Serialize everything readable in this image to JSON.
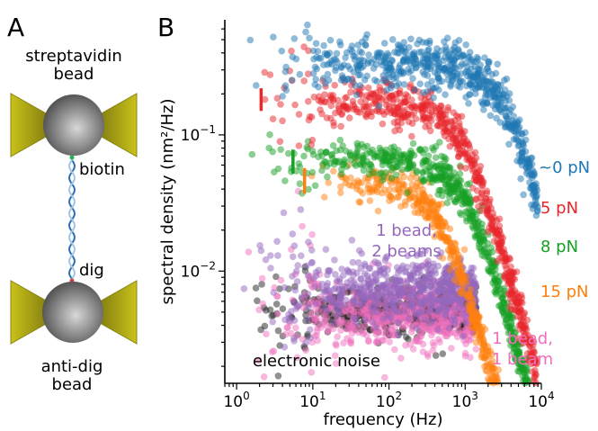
{
  "panel_a": {
    "label": "A",
    "top_bead_label_line1": "streptavidin",
    "top_bead_label_line2": "bead",
    "biotin_label": "biotin",
    "dig_label": "dig",
    "bottom_bead_label_line1": "anti-dig",
    "bottom_bead_label_line2": "bead"
  },
  "panel_b": {
    "label": "B"
  },
  "chart_data": {
    "type": "scatter",
    "xlabel": "frequency (Hz)",
    "ylabel": "spectral density (nm²/Hz)",
    "xscale": "log",
    "yscale": "log",
    "xlim": [
      0.7,
      10000
    ],
    "ylim": [
      0.0015,
      0.7
    ],
    "xticks": [
      {
        "value": 1,
        "label": "10",
        "exp": "0"
      },
      {
        "value": 10,
        "label": "10",
        "exp": "1"
      },
      {
        "value": 100,
        "label": "10",
        "exp": "2"
      },
      {
        "value": 1000,
        "label": "10",
        "exp": "3"
      },
      {
        "value": 10000,
        "label": "10",
        "exp": "4"
      }
    ],
    "yticks": [
      {
        "value": 0.01,
        "label": "10",
        "exp": "−2"
      },
      {
        "value": 0.1,
        "label": "10",
        "exp": "−1"
      }
    ],
    "grid": false,
    "series": [
      {
        "name": "~0 pN",
        "color": "#1f77b4",
        "plateau": 0.33,
        "fc": 3000,
        "fmin": 1,
        "fmax": 9000,
        "scatter": 0.09
      },
      {
        "name": "5 pN",
        "color": "#e8262b",
        "plateau": 0.17,
        "fc": 900,
        "fmin": 1,
        "fmax": 9000,
        "scatter": 0.08
      },
      {
        "name": "8 pN",
        "color": "#16a024",
        "plateau": 0.065,
        "fc": 1000,
        "fmin": 1,
        "fmax": 9000,
        "scatter": 0.07
      },
      {
        "name": "15 pN",
        "color": "#ff7f0e",
        "plateau": 0.045,
        "fc": 450,
        "fmin": 8,
        "fmax": 9000,
        "scatter": 0.07
      },
      {
        "name": "1 bead, 2 beams",
        "color": "#9467bd",
        "plateau": 0.0075,
        "fc": 100000,
        "fmin": 1,
        "fmax": 1400,
        "scatter": 0.11
      },
      {
        "name": "1 bead, 1 beam",
        "color": "#f06fbd",
        "plateau": 0.0048,
        "fc": 100000,
        "fmin": 1,
        "fmax": 1400,
        "scatter": 0.12
      },
      {
        "name": "electronic noise",
        "color": "#222222",
        "plateau": 0.0052,
        "fc": 100000,
        "fmin": 1,
        "fmax": 1400,
        "scatter": 0.08
      }
    ],
    "annotations": [
      {
        "text": "~0 pN",
        "color": "#1f77b4"
      },
      {
        "text": "5 pN",
        "color": "#e8262b"
      },
      {
        "text": "8 pN",
        "color": "#16a024"
      },
      {
        "text": "15 pN",
        "color": "#ff7f0e"
      },
      {
        "text_line1": "1 bead,",
        "text_line2": "2 beams",
        "color": "#9467bd"
      },
      {
        "text_line1": "1 bead,",
        "text_line2": "1 beam",
        "color": "#f06fbd"
      },
      {
        "text": "electronic noise",
        "color": "#000000"
      }
    ],
    "corner_markers": [
      {
        "series": "5 pN",
        "color": "#e8262b",
        "x": 2.1,
        "y_low": 0.15,
        "y_high": 0.22
      },
      {
        "series": "8 pN",
        "color": "#16a024",
        "x": 5.5,
        "y_low": 0.052,
        "y_high": 0.078
      },
      {
        "series": "15 pN",
        "color": "#ff7f0e",
        "x": 7.8,
        "y_low": 0.037,
        "y_high": 0.057
      }
    ]
  }
}
